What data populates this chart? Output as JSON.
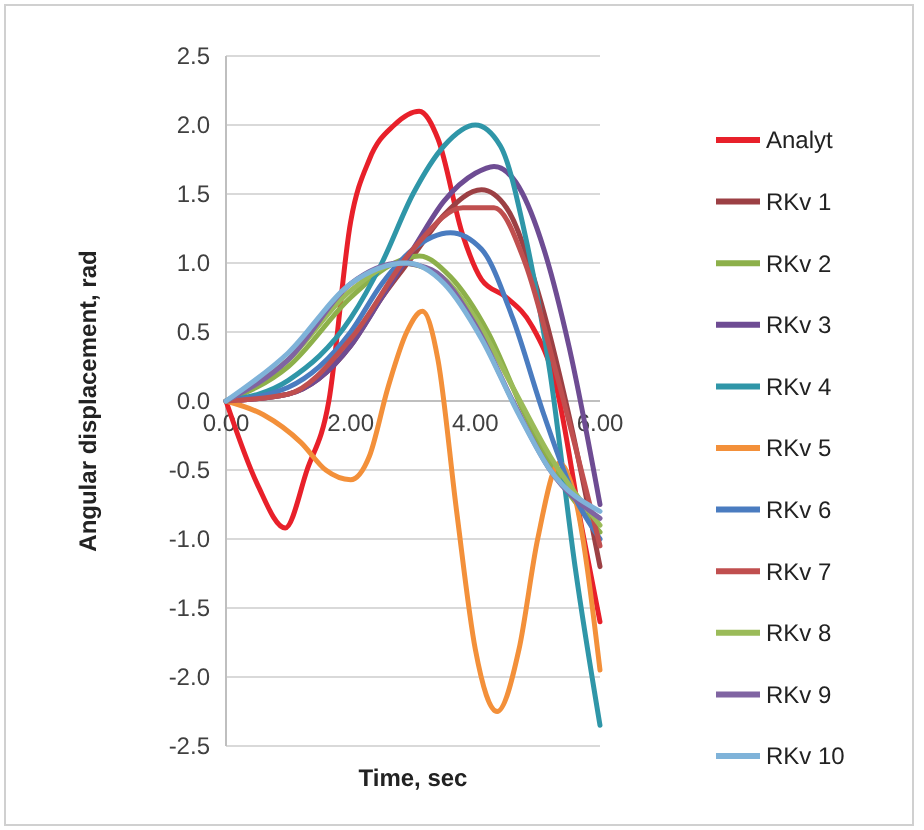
{
  "chart_data": {
    "type": "line",
    "xlabel": "Time, sec",
    "ylabel": "Angular displacement, rad",
    "xlim": [
      0,
      6
    ],
    "xticks": [
      {
        "value": 0,
        "label": "0.00"
      },
      {
        "value": 2,
        "label": "2.00"
      },
      {
        "value": 4,
        "label": "4.00"
      },
      {
        "value": 6,
        "label": "6.00"
      }
    ],
    "ylim": [
      -2.5,
      2.5
    ],
    "yticks": [
      {
        "value": -2.5,
        "label": "-2.5"
      },
      {
        "value": -2,
        "label": "-2.0"
      },
      {
        "value": -1.5,
        "label": "-1.5"
      },
      {
        "value": -1,
        "label": "-1.0"
      },
      {
        "value": -0.5,
        "label": "-0.5"
      },
      {
        "value": 0,
        "label": "0.0"
      },
      {
        "value": 0.5,
        "label": "0.5"
      },
      {
        "value": 1,
        "label": "1.0"
      },
      {
        "value": 1.5,
        "label": "1.5"
      },
      {
        "value": 2,
        "label": "2.0"
      },
      {
        "value": 2.5,
        "label": "2.5"
      }
    ],
    "grid": "y",
    "legend": "right",
    "marker": "none",
    "line_style": "solid",
    "series": [
      {
        "name": "Analyt",
        "color": "#e8202a",
        "x": [
          0,
          0.5,
          0.95,
          1.3,
          1.65,
          2.0,
          2.3,
          2.7,
          3.1,
          3.4,
          3.8,
          4.1,
          4.5,
          4.9,
          5.3,
          5.7,
          6
        ],
        "values": [
          0,
          -0.6,
          -0.92,
          -0.5,
          0,
          1.3,
          1.75,
          2.0,
          2.1,
          1.9,
          1.2,
          0.88,
          0.75,
          0.55,
          0.1,
          -0.9,
          -1.6
        ]
      },
      {
        "name": "RKv 1",
        "color": "#9c4044",
        "x": [
          0,
          1,
          2,
          2.5,
          3,
          3.5,
          4.1,
          4.5,
          5,
          5.5,
          6
        ],
        "values": [
          0,
          0.05,
          0.4,
          0.75,
          1.05,
          1.35,
          1.53,
          1.4,
          0.8,
          -0.1,
          -1.2
        ]
      },
      {
        "name": "RKv 2",
        "color": "#8db04a",
        "x": [
          0,
          1,
          2,
          2.7,
          3.1,
          3.6,
          4.2,
          4.8,
          5.4,
          6
        ],
        "values": [
          0,
          0.25,
          0.75,
          1.0,
          1.05,
          0.9,
          0.5,
          -0.1,
          -0.6,
          -0.95
        ]
      },
      {
        "name": "RKv 3",
        "color": "#6e4c93",
        "x": [
          0,
          1,
          2,
          2.5,
          3,
          3.5,
          4,
          4.3,
          4.7,
          5.1,
          5.5,
          6
        ],
        "values": [
          0,
          0.05,
          0.4,
          0.75,
          1.1,
          1.45,
          1.65,
          1.7,
          1.55,
          1.1,
          0.4,
          -0.75
        ]
      },
      {
        "name": "RKv 4",
        "color": "#2f96a8",
        "x": [
          0,
          1,
          2,
          2.5,
          3,
          3.5,
          4,
          4.4,
          4.8,
          5.2,
          5.6,
          6
        ],
        "values": [
          0,
          0.15,
          0.6,
          1.0,
          1.5,
          1.85,
          2.0,
          1.85,
          1.2,
          0.2,
          -1.2,
          -2.35
        ]
      },
      {
        "name": "RKv 5",
        "color": "#f3903a",
        "x": [
          0,
          0.6,
          1.2,
          1.6,
          2.0,
          2.3,
          2.6,
          2.9,
          3.15,
          3.4,
          3.7,
          4.0,
          4.35,
          4.7,
          5.0,
          5.35,
          5.6,
          6
        ],
        "values": [
          0,
          -0.1,
          -0.3,
          -0.5,
          -0.57,
          -0.4,
          0.1,
          0.5,
          0.65,
          0.3,
          -0.8,
          -1.8,
          -2.25,
          -1.8,
          -1.0,
          -0.45,
          -0.7,
          -1.95
        ]
      },
      {
        "name": "RKv 6",
        "color": "#4a7cc0",
        "x": [
          0,
          1,
          2,
          2.5,
          3,
          3.6,
          4.1,
          4.6,
          5.1,
          5.6,
          6
        ],
        "values": [
          0,
          0.1,
          0.5,
          0.85,
          1.1,
          1.22,
          1.1,
          0.6,
          -0.1,
          -0.7,
          -1.0
        ]
      },
      {
        "name": "RKv 7",
        "color": "#c04f4f",
        "x": [
          0,
          1,
          2,
          3,
          3.8,
          4.3,
          4.8,
          5.3,
          6
        ],
        "values": [
          0,
          0.05,
          0.45,
          1.1,
          1.4,
          1.4,
          1.0,
          0.2,
          -1.05
        ]
      },
      {
        "name": "RKv 8",
        "color": "#9bbb59",
        "x": [
          0,
          1,
          2,
          2.8,
          3.4,
          4,
          4.6,
          5.2,
          6
        ],
        "values": [
          0,
          0.3,
          0.8,
          1.0,
          0.92,
          0.6,
          0.1,
          -0.4,
          -0.9
        ]
      },
      {
        "name": "RKv 9",
        "color": "#8064a2",
        "x": [
          0,
          1,
          2,
          2.8,
          3.3,
          4,
          4.6,
          5.2,
          6
        ],
        "values": [
          0,
          0.3,
          0.85,
          1.0,
          0.95,
          0.55,
          0.0,
          -0.5,
          -0.85
        ]
      },
      {
        "name": "RKv 10",
        "color": "#7fb3d9",
        "x": [
          0,
          1,
          2,
          2.9,
          3.5,
          4.1,
          4.7,
          5.2,
          6
        ],
        "values": [
          0,
          0.35,
          0.85,
          1.0,
          0.85,
          0.45,
          -0.1,
          -0.5,
          -0.8
        ]
      }
    ]
  }
}
